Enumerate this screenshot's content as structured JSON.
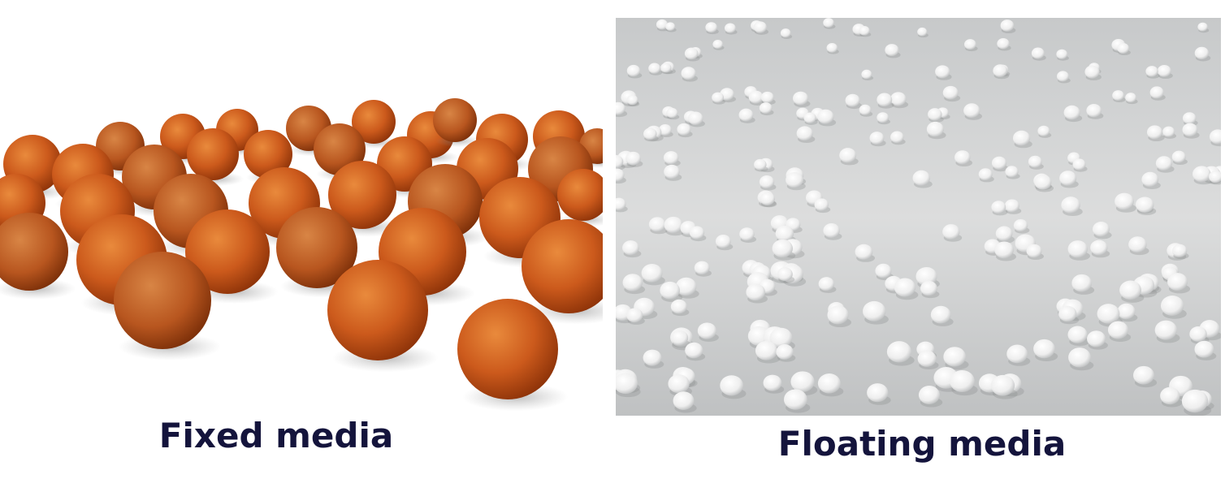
{
  "figure": {
    "left": {
      "caption": "Fixed media",
      "subject": "orange-spherical-media-balls",
      "color": "#c8581a"
    },
    "right": {
      "caption": "Floating media",
      "subject": "white-floating-media-beads",
      "color": "#f2f2f2"
    }
  }
}
